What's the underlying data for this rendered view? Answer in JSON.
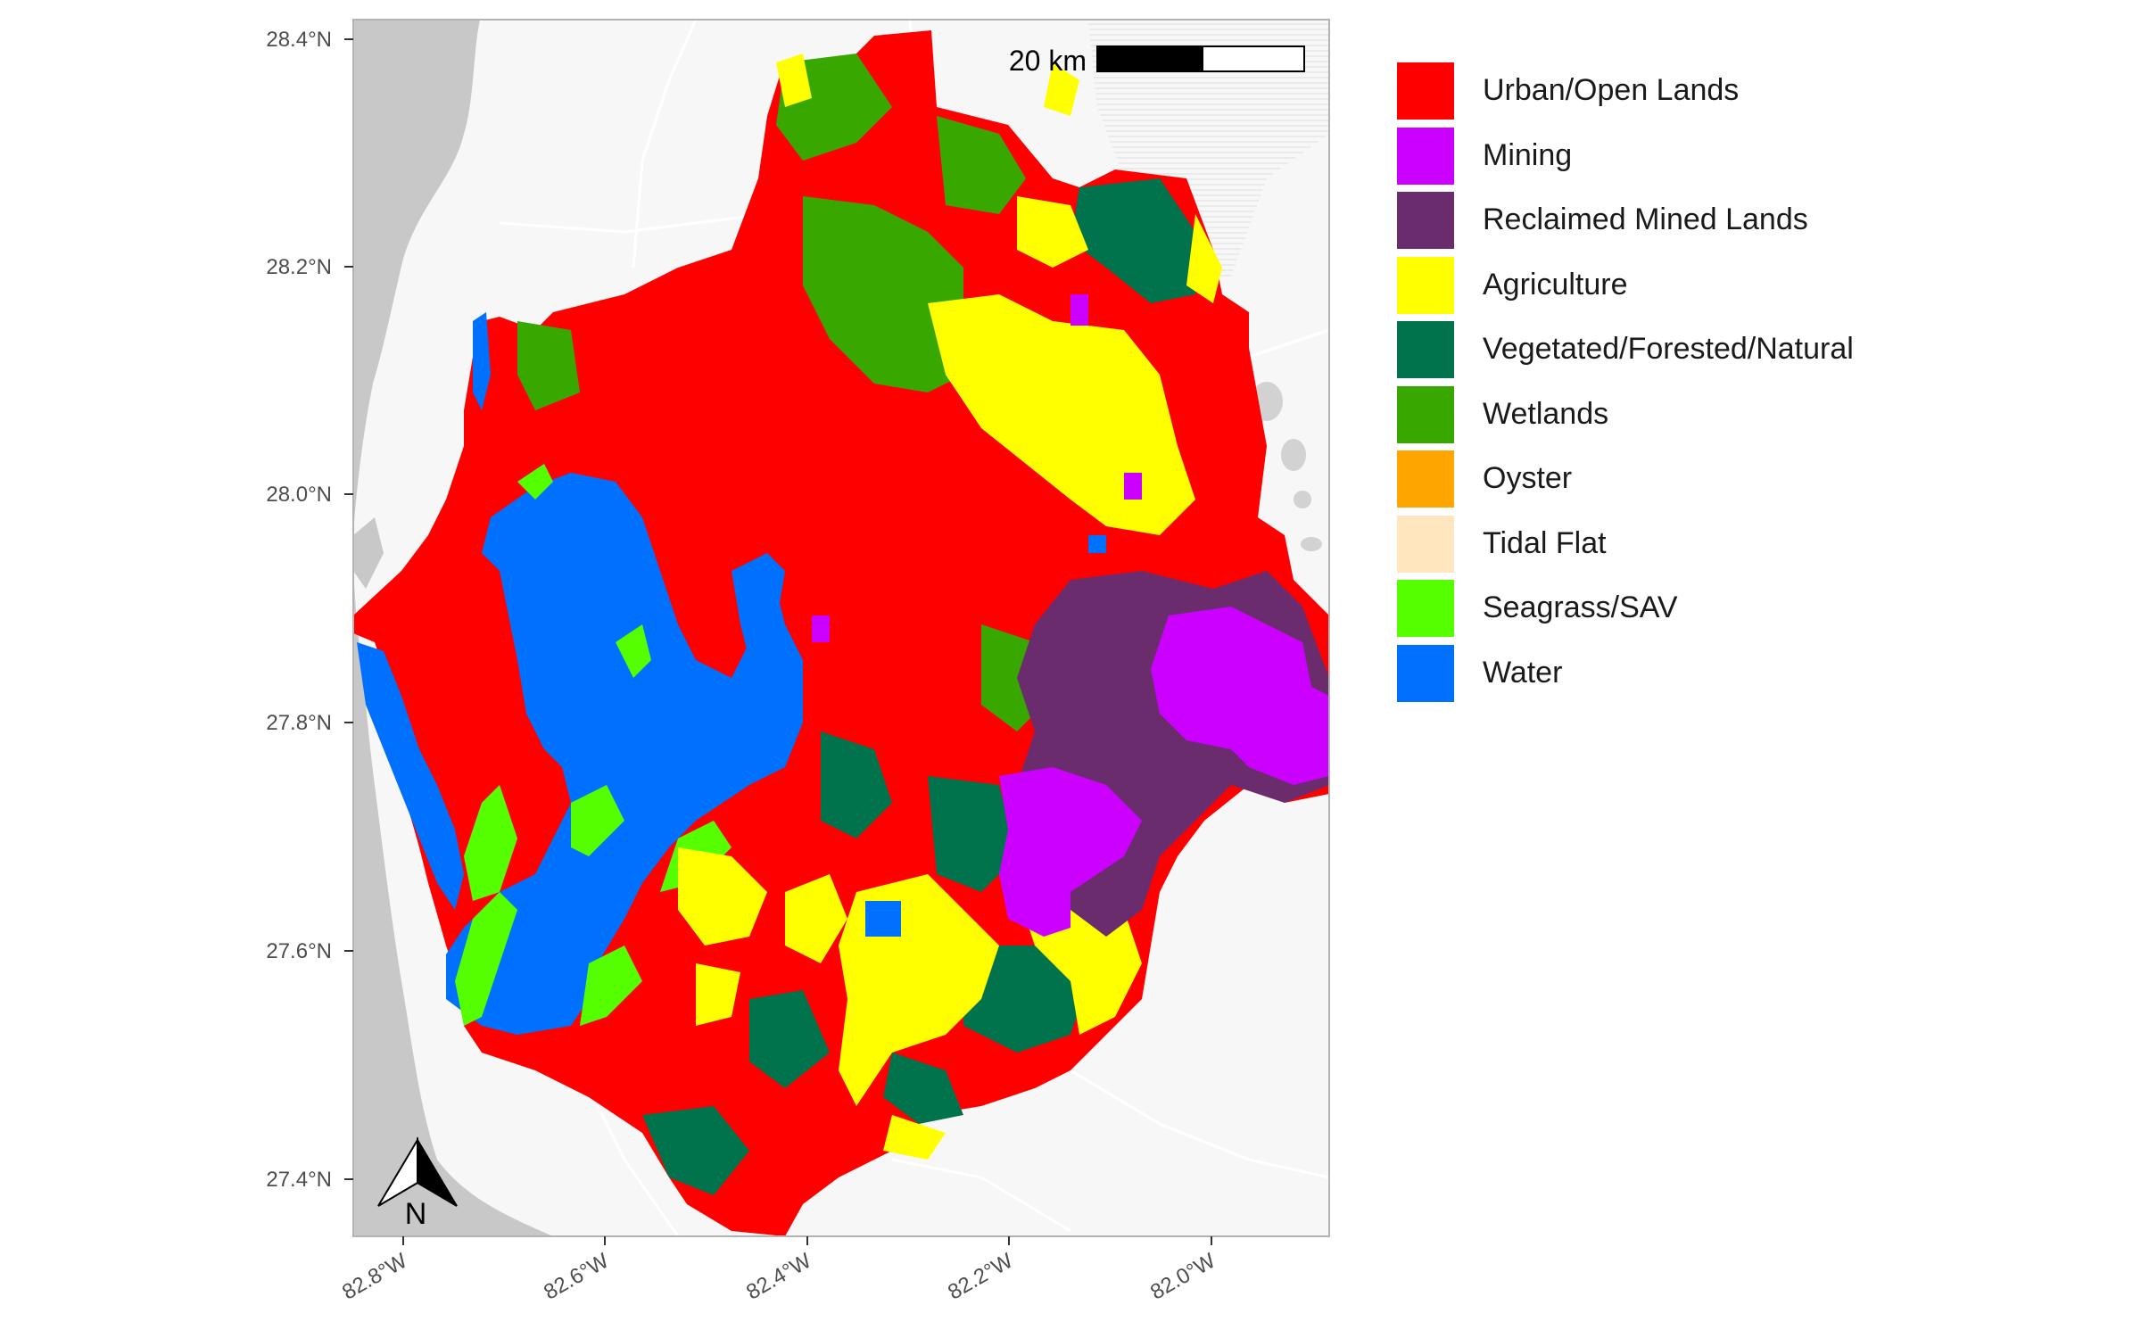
{
  "map": {
    "latitude_ticks": [
      "28.4°N",
      "28.2°N",
      "28.0°N",
      "27.8°N",
      "27.6°N",
      "27.4°N"
    ],
    "longitude_ticks": [
      "82.8°W",
      "82.6°W",
      "82.4°W",
      "82.2°W",
      "82.0°W"
    ],
    "scale_bar": {
      "label": "20 km"
    },
    "north_arrow": {
      "label": "N"
    }
  },
  "legend": {
    "items": [
      {
        "label": "Urban/Open Lands",
        "color": "#FF0000"
      },
      {
        "label": "Mining",
        "color": "#CC00FF"
      },
      {
        "label": "Reclaimed Mined Lands",
        "color": "#6B2C6E"
      },
      {
        "label": "Agriculture",
        "color": "#FFFF00"
      },
      {
        "label": "Vegetated/Forested/Natural",
        "color": "#00734C"
      },
      {
        "label": "Wetlands",
        "color": "#38A800"
      },
      {
        "label": "Oyster",
        "color": "#FFA500"
      },
      {
        "label": "Tidal Flat",
        "color": "#FFE6BE"
      },
      {
        "label": "Seagrass/SAV",
        "color": "#55FF00"
      },
      {
        "label": "Water",
        "color": "#0070FF"
      }
    ]
  }
}
